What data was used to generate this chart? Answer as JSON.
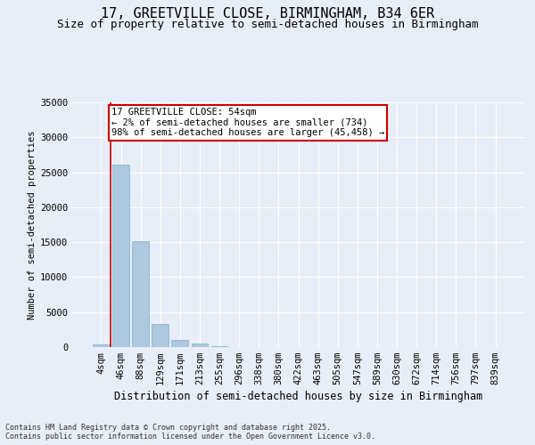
{
  "title_line1": "17, GREETVILLE CLOSE, BIRMINGHAM, B34 6ER",
  "title_line2": "Size of property relative to semi-detached houses in Birmingham",
  "xlabel": "Distribution of semi-detached houses by size in Birmingham",
  "ylabel": "Number of semi-detached properties",
  "categories": [
    "4sqm",
    "46sqm",
    "88sqm",
    "129sqm",
    "171sqm",
    "213sqm",
    "255sqm",
    "296sqm",
    "338sqm",
    "380sqm",
    "422sqm",
    "463sqm",
    "505sqm",
    "547sqm",
    "589sqm",
    "630sqm",
    "672sqm",
    "714sqm",
    "756sqm",
    "797sqm",
    "839sqm"
  ],
  "values": [
    400,
    26100,
    15100,
    3300,
    1000,
    450,
    150,
    0,
    0,
    0,
    0,
    0,
    0,
    0,
    0,
    0,
    0,
    0,
    0,
    0,
    0
  ],
  "bar_color": "#aec8e0",
  "bar_edgecolor": "#7aafd0",
  "vline_color": "#cc0000",
  "annotation_text": "17 GREETVILLE CLOSE: 54sqm\n← 2% of semi-detached houses are smaller (734)\n98% of semi-detached houses are larger (45,458) →",
  "annotation_box_color": "#cc0000",
  "ylim": [
    0,
    35000
  ],
  "yticks": [
    0,
    5000,
    10000,
    15000,
    20000,
    25000,
    30000,
    35000
  ],
  "ytick_labels": [
    "0",
    "5000",
    "10000",
    "15000",
    "20000",
    "25000",
    "30000",
    "35000"
  ],
  "background_color": "#e8eef7",
  "plot_bg_color": "#e8eef7",
  "footer_text": "Contains HM Land Registry data © Crown copyright and database right 2025.\nContains public sector information licensed under the Open Government Licence v3.0.",
  "title_fontsize": 11,
  "subtitle_fontsize": 9,
  "tick_fontsize": 7.5,
  "ylabel_fontsize": 7.5,
  "xlabel_fontsize": 8.5
}
